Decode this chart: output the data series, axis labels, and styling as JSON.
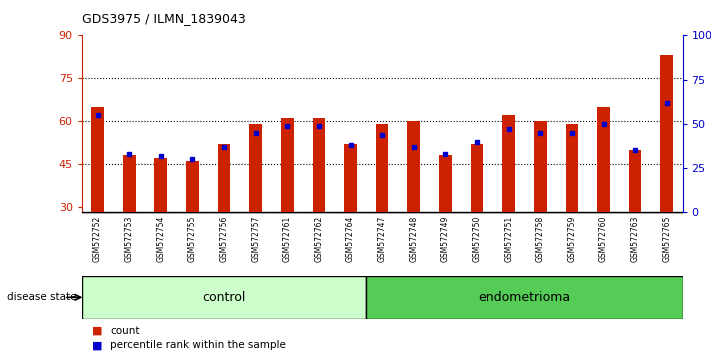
{
  "title": "GDS3975 / ILMN_1839043",
  "samples": [
    "GSM572752",
    "GSM572753",
    "GSM572754",
    "GSM572755",
    "GSM572756",
    "GSM572757",
    "GSM572761",
    "GSM572762",
    "GSM572764",
    "GSM572747",
    "GSM572748",
    "GSM572749",
    "GSM572750",
    "GSM572751",
    "GSM572758",
    "GSM572759",
    "GSM572760",
    "GSM572763",
    "GSM572765"
  ],
  "counts": [
    65,
    48,
    47,
    46,
    52,
    59,
    61,
    61,
    52,
    59,
    60,
    48,
    52,
    62,
    60,
    59,
    65,
    50,
    83
  ],
  "percentile_ranks": [
    55,
    33,
    32,
    30,
    37,
    45,
    49,
    49,
    38,
    44,
    37,
    33,
    40,
    47,
    45,
    45,
    50,
    35,
    62
  ],
  "control_count": 9,
  "endometrioma_count": 10,
  "bar_color": "#cc2200",
  "dot_color": "#0000cc",
  "ylim_left": [
    28,
    90
  ],
  "ylim_right": [
    0,
    100
  ],
  "yticks_left": [
    30,
    45,
    60,
    75,
    90
  ],
  "yticks_right": [
    0,
    25,
    50,
    75,
    100
  ],
  "ytick_labels_right": [
    "0",
    "25",
    "50",
    "75",
    "100%"
  ],
  "grid_yticks": [
    45,
    60,
    75
  ],
  "control_color": "#ccffcc",
  "endometrioma_color": "#55cc55",
  "xtick_bg_color": "#d0d0d0",
  "plot_bg": "#ffffff",
  "legend_count_label": "count",
  "legend_pct_label": "percentile rank within the sample",
  "disease_state_label": "disease state",
  "control_label": "control",
  "endometrioma_label": "endometrioma",
  "bar_width": 0.4,
  "figsize": [
    7.11,
    3.54
  ],
  "dpi": 100
}
